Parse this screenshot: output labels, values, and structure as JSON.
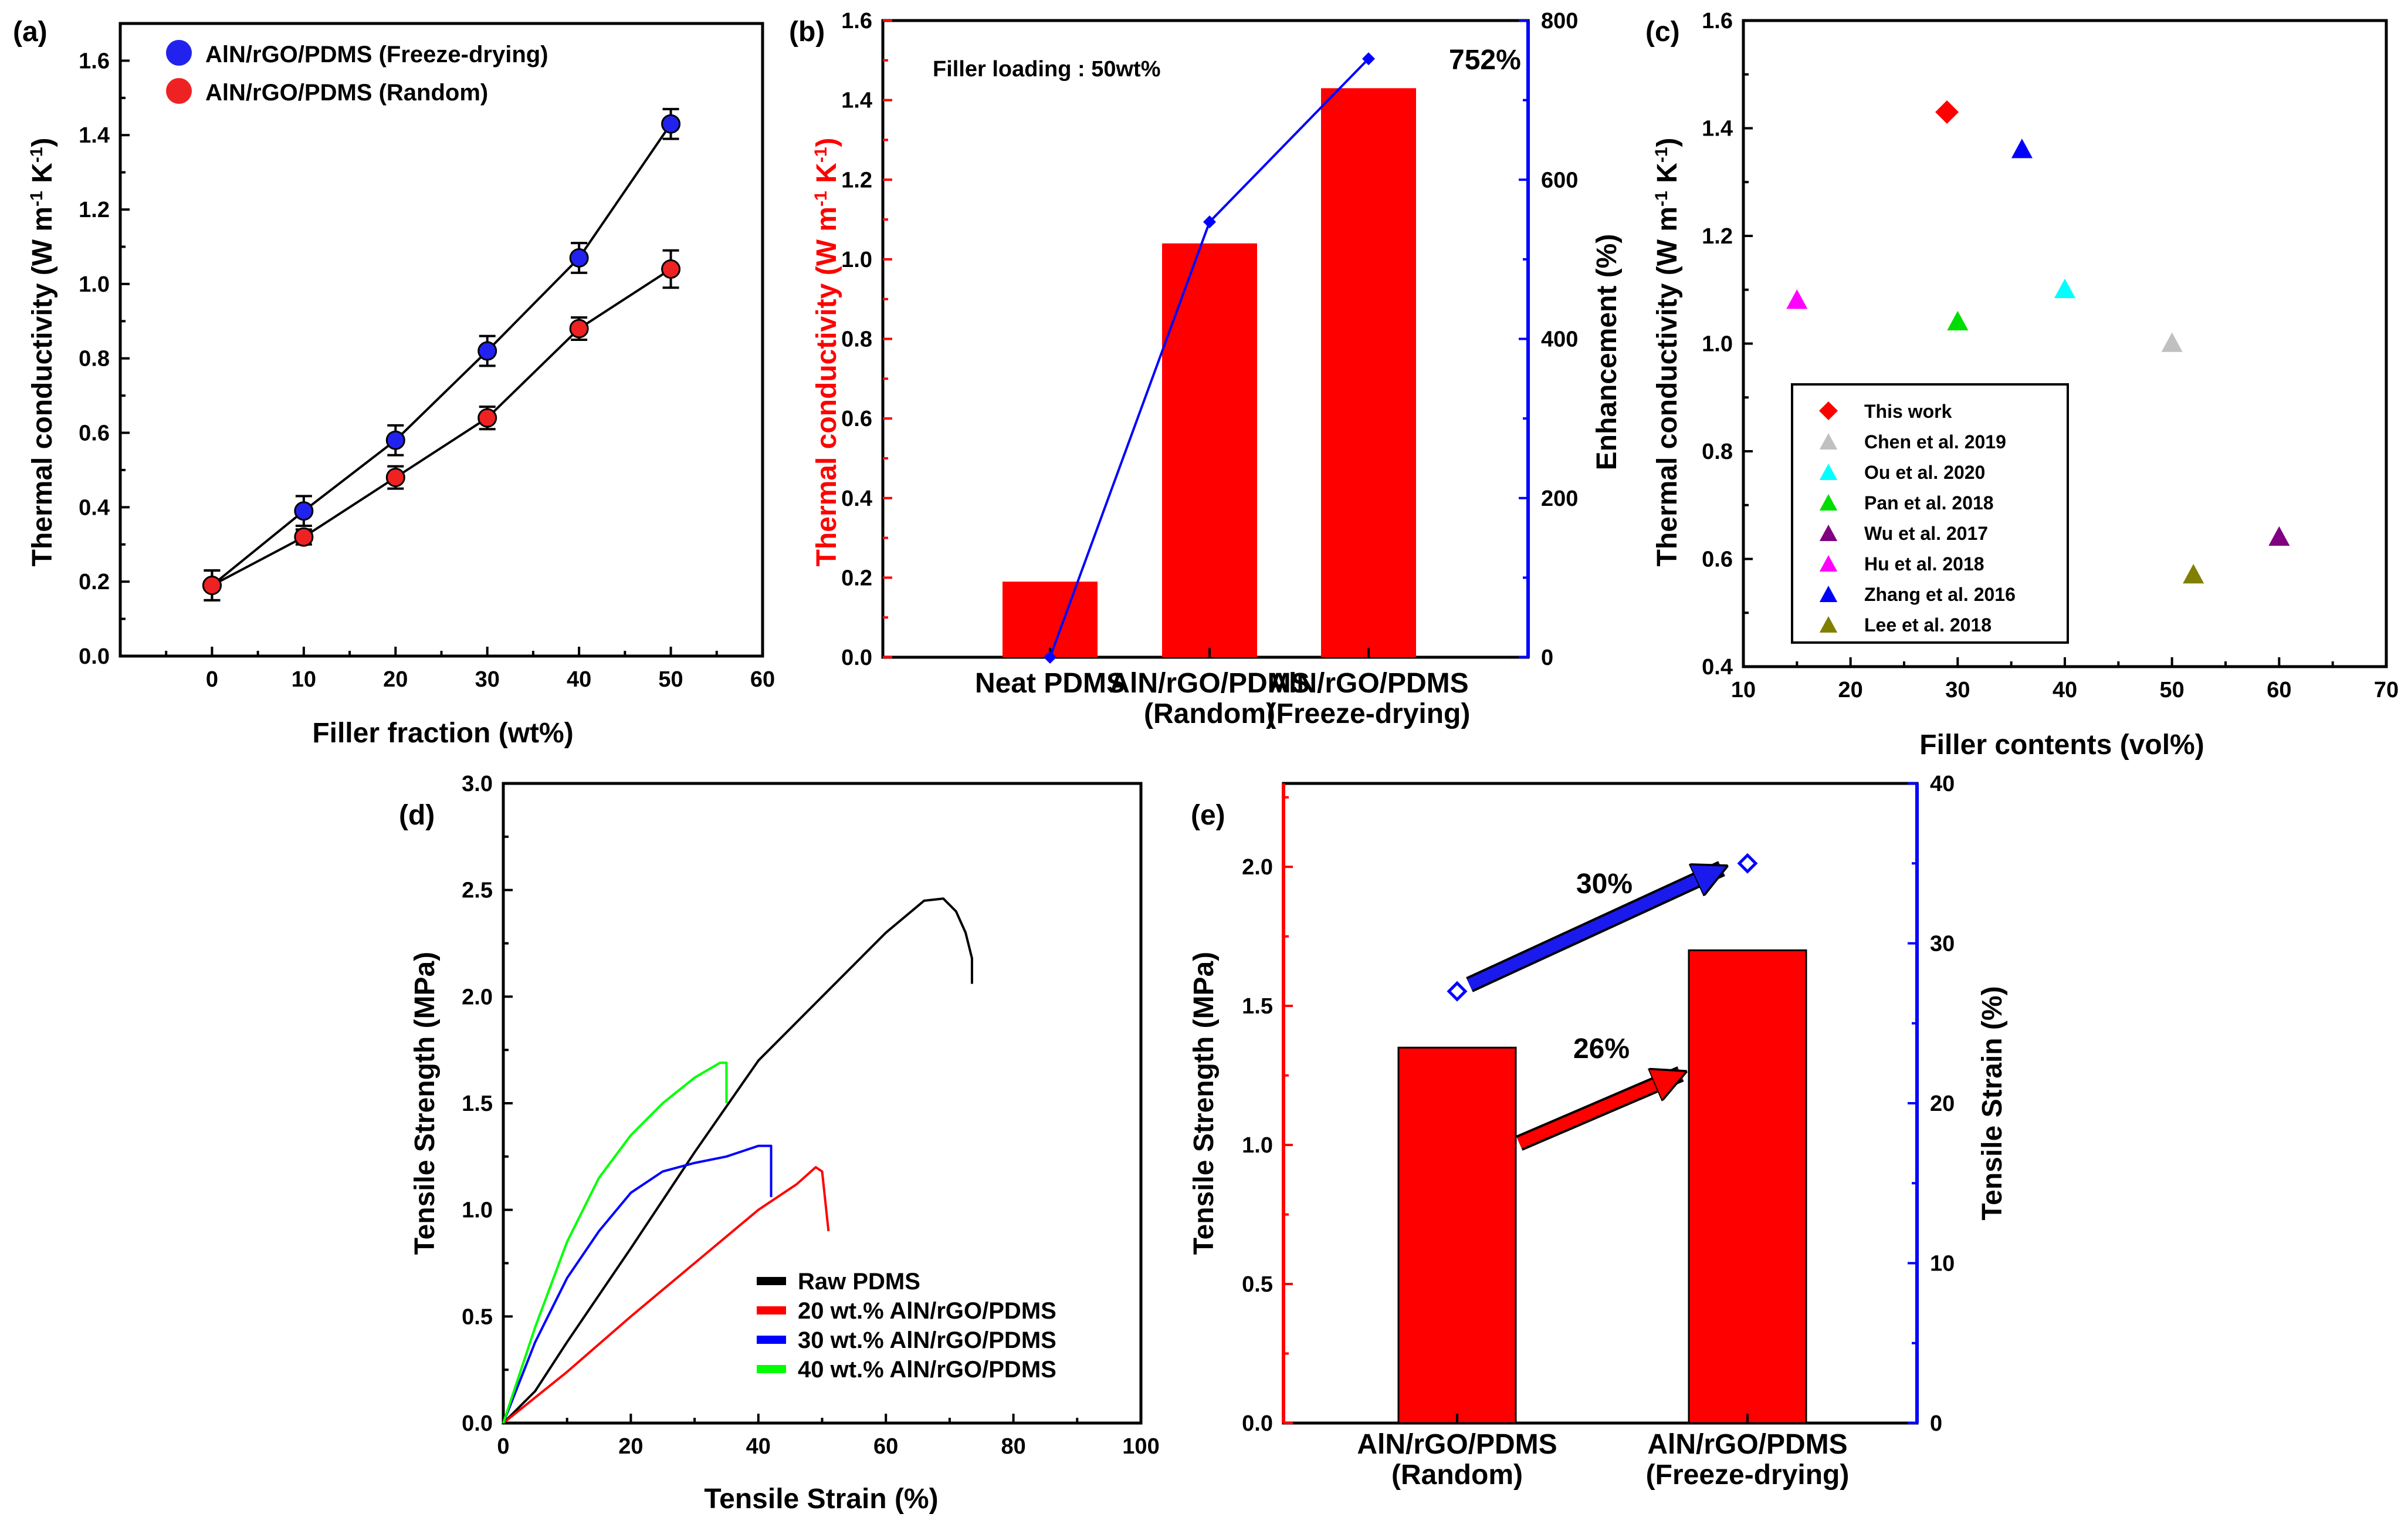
{
  "colors": {
    "red": "#ff0000",
    "blue": "#0000ff",
    "navy": "#1a1aee",
    "black": "#000000",
    "green": "#00ff00",
    "marker_blue": "#2222ee",
    "marker_red": "#ee2222"
  },
  "chart_data": [
    {
      "id": "a",
      "panel_label": "(a)",
      "type": "line",
      "xlabel": "Filler fraction (wt%)",
      "ylabel": "Thermal conductivity (W m-1 K-1)",
      "xlim": [
        -10,
        60
      ],
      "ylim": [
        0.0,
        1.7
      ],
      "x_ticks": [
        "0",
        "10",
        "20",
        "30",
        "40",
        "50",
        "60"
      ],
      "y_ticks": [
        "0.0",
        "0.2",
        "0.4",
        "0.6",
        "0.8",
        "1.0",
        "1.2",
        "1.4",
        "1.6"
      ],
      "x": [
        0,
        10,
        20,
        30,
        40,
        50
      ],
      "series": [
        {
          "name": "AlN/rGO/PDMS (Freeze-drying)",
          "color": "#2222ee",
          "values": [
            0.19,
            0.39,
            0.58,
            0.82,
            1.07,
            1.43
          ],
          "errors": [
            0.04,
            0.04,
            0.04,
            0.04,
            0.04,
            0.04
          ]
        },
        {
          "name": "AlN/rGO/PDMS (Random)",
          "color": "#ee2222",
          "values": [
            0.19,
            0.32,
            0.48,
            0.64,
            0.88,
            1.04
          ],
          "errors": [
            0.04,
            0.02,
            0.03,
            0.03,
            0.03,
            0.05
          ]
        }
      ]
    },
    {
      "id": "b",
      "panel_label": "(b)",
      "type": "bar",
      "annotation": "Filler loading : 50wt%",
      "ylabel": "Thermal conductivity (W m-1 K-1)",
      "y2label": "Enhancement (%)",
      "ylim": [
        0.0,
        1.6
      ],
      "y2lim": [
        0,
        800
      ],
      "y_ticks": [
        "0.0",
        "0.2",
        "0.4",
        "0.6",
        "0.8",
        "1.0",
        "1.2",
        "1.4",
        "1.6"
      ],
      "y2_ticks": [
        "0",
        "200",
        "400",
        "600",
        "800"
      ],
      "categories": [
        [
          "Neat PDMS"
        ],
        [
          "AlN/rGO/PDMS",
          "(Random)"
        ],
        [
          "AlN/rGO/PDMS",
          "(Freeze-drying)"
        ]
      ],
      "values": [
        0.19,
        1.04,
        1.43
      ],
      "enhancement": [
        0,
        547,
        752
      ],
      "enhancement_label": "752%"
    },
    {
      "id": "c",
      "panel_label": "(c)",
      "type": "scatter",
      "xlabel": "Filler contents (vol%)",
      "ylabel": "Thermal conductivity (W m-1 K-1)",
      "xlim": [
        10,
        70
      ],
      "ylim": [
        0.4,
        1.6
      ],
      "x_ticks": [
        "10",
        "20",
        "30",
        "40",
        "50",
        "60",
        "70"
      ],
      "y_ticks": [
        "0.4",
        "0.6",
        "0.8",
        "1.0",
        "1.2",
        "1.4",
        "1.6"
      ],
      "points": [
        {
          "name": "This work",
          "color": "#ff0000",
          "marker": "diamond",
          "x": 29,
          "y": 1.43
        },
        {
          "name": "Chen et al. 2019",
          "color": "#c0c0c0",
          "marker": "triangle",
          "x": 50,
          "y": 1.0
        },
        {
          "name": "Ou et al. 2020",
          "color": "#00ffff",
          "marker": "triangle",
          "x": 40,
          "y": 1.1
        },
        {
          "name": "Pan et al. 2018",
          "color": "#00dd00",
          "marker": "triangle",
          "x": 30,
          "y": 1.04
        },
        {
          "name": "Wu et al. 2017",
          "color": "#800080",
          "marker": "triangle",
          "x": 60,
          "y": 0.64
        },
        {
          "name": "Hu et al. 2018",
          "color": "#ff00ff",
          "marker": "triangle",
          "x": 15,
          "y": 1.08
        },
        {
          "name": "Zhang et al. 2016",
          "color": "#0000ff",
          "marker": "triangle",
          "x": 36,
          "y": 1.36
        },
        {
          "name": "Lee et al. 2018",
          "color": "#808000",
          "marker": "triangle",
          "x": 52,
          "y": 0.57
        }
      ]
    },
    {
      "id": "d",
      "panel_label": "(d)",
      "type": "line",
      "xlabel": "Tensile Strain (%)",
      "ylabel": "Tensile Strength (MPa)",
      "xlim": [
        0,
        100
      ],
      "ylim": [
        0.0,
        3.0
      ],
      "x_ticks": [
        "0",
        "20",
        "40",
        "60",
        "80",
        "100"
      ],
      "y_ticks": [
        "0.0",
        "0.5",
        "1.0",
        "1.5",
        "2.0",
        "2.5",
        "3.0"
      ],
      "series": [
        {
          "name": "Raw PDMS",
          "color": "#000000",
          "x": [
            0,
            5,
            10,
            20,
            30,
            40,
            50,
            60,
            66,
            69,
            71,
            72.5,
            73.5,
            73.5
          ],
          "y": [
            0,
            0.15,
            0.38,
            0.82,
            1.27,
            1.7,
            2.0,
            2.3,
            2.45,
            2.46,
            2.4,
            2.3,
            2.18,
            2.06
          ]
        },
        {
          "name": "20 wt.% AlN/rGO/PDMS",
          "color": "#ff0000",
          "x": [
            0,
            10,
            20,
            30,
            40,
            46,
            49,
            50,
            51
          ],
          "y": [
            0,
            0.24,
            0.5,
            0.75,
            1.0,
            1.12,
            1.2,
            1.18,
            0.9
          ]
        },
        {
          "name": "30 wt.% AlN/rGO/PDMS",
          "color": "#0000ff",
          "x": [
            0,
            5,
            10,
            15,
            20,
            25,
            30,
            35,
            40,
            42,
            42,
            42
          ],
          "y": [
            0,
            0.38,
            0.68,
            0.9,
            1.08,
            1.18,
            1.22,
            1.25,
            1.3,
            1.3,
            1.2,
            1.06
          ]
        },
        {
          "name": "40 wt.% AlN/rGO/PDMS",
          "color": "#00ff00",
          "x": [
            0,
            5,
            10,
            15,
            20,
            25,
            30,
            34,
            35,
            35
          ],
          "y": [
            0,
            0.45,
            0.85,
            1.15,
            1.35,
            1.5,
            1.62,
            1.69,
            1.69,
            1.5
          ]
        }
      ]
    },
    {
      "id": "e",
      "panel_label": "(e)",
      "type": "bar",
      "ylabel": "Tensile Strength (MPa)",
      "y2label": "Tensile Strain (%)",
      "ylim": [
        0.0,
        2.3
      ],
      "y2lim": [
        0,
        40
      ],
      "y_ticks": [
        "0.0",
        "0.5",
        "1.0",
        "1.5",
        "2.0"
      ],
      "y2_ticks": [
        "0",
        "10",
        "20",
        "30",
        "40"
      ],
      "categories": [
        [
          "AlN/rGO/PDMS",
          "(Random)"
        ],
        [
          "AlN/rGO/PDMS",
          "(Freeze-drying)"
        ]
      ],
      "values": [
        1.35,
        1.7
      ],
      "strain": [
        27,
        35
      ],
      "strength_increase_label": "26%",
      "strain_increase_label": "30%"
    }
  ]
}
